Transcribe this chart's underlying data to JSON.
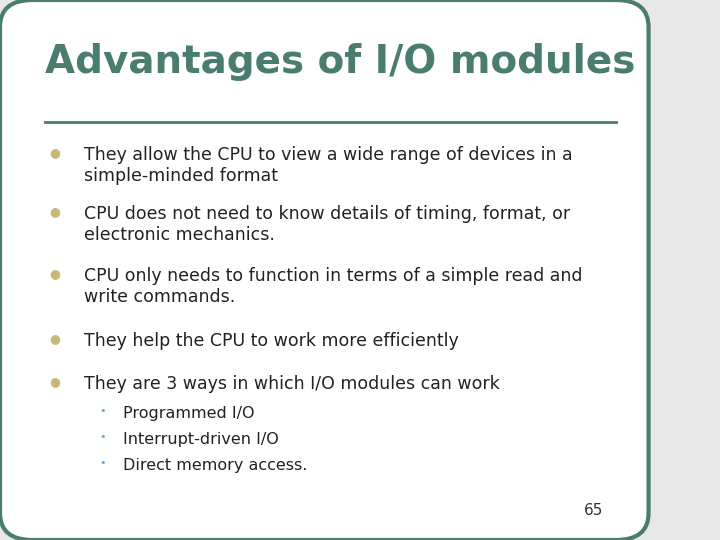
{
  "title": "Advantages of I/O modules",
  "title_color": "#4a7c6f",
  "title_fontsize": 28,
  "background_color": "#ffffff",
  "border_color": "#4a7c6f",
  "line_color": "#4a7c6f",
  "bullet_color": "#c8b97a",
  "sub_bullet_color": "#6aaacc",
  "text_color": "#222222",
  "page_number": "65",
  "bullets": [
    "They allow the CPU to view a wide range of devices in a\nsimple-minded format",
    "CPU does not need to know details of timing, format, or\nelectronic mechanics.",
    "CPU only needs to function in terms of a simple read and\nwrite commands.",
    "They help the CPU to work more efficiently",
    "They are 3 ways in which I/O modules can work"
  ],
  "sub_bullets": [
    "Programmed I/O",
    "Interrupt-driven I/O",
    "Direct memory access."
  ]
}
